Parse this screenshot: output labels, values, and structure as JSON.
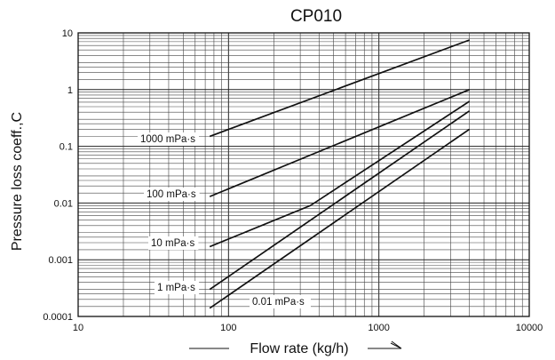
{
  "chart_data": {
    "type": "line",
    "title": "CP010",
    "xlabel": "Flow rate (kg/h)",
    "ylabel": "Pressure loss coeff.,C",
    "x_scale": "log",
    "y_scale": "log",
    "xlim": [
      10,
      10000
    ],
    "ylim": [
      0.0001,
      10
    ],
    "x_tick_labels": [
      "10",
      "100",
      "1000",
      "10000"
    ],
    "y_tick_labels": [
      "10",
      "1",
      "0.1",
      "0.01",
      "0.001",
      "0.0001"
    ],
    "grid": true,
    "series": [
      {
        "name": "1000 mPa·s",
        "x": [
          75,
          4000
        ],
        "y": [
          0.15,
          7.5
        ]
      },
      {
        "name": "100 mPa·s",
        "x": [
          75,
          4000
        ],
        "y": [
          0.013,
          1.0
        ]
      },
      {
        "name": "10 mPa·s",
        "x": [
          75,
          350,
          4000
        ],
        "y": [
          0.0017,
          0.009,
          0.62
        ]
      },
      {
        "name": "1 mPa·s",
        "x": [
          75,
          4000
        ],
        "y": [
          0.0003,
          0.42
        ]
      },
      {
        "name": "0.01 mPa·s",
        "x": [
          75,
          4000
        ],
        "y": [
          0.00014,
          0.2
        ]
      }
    ]
  }
}
